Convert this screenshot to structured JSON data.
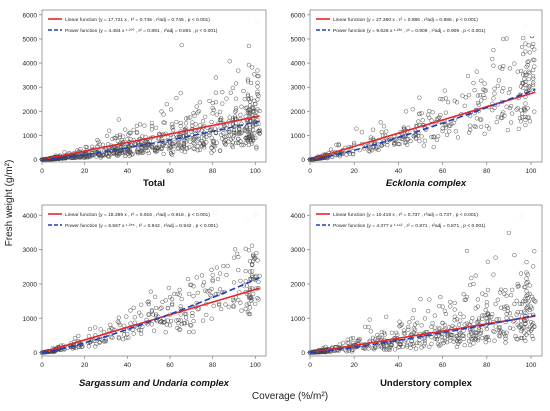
{
  "figure": {
    "ylabel": "Fresh weight (g/m²)",
    "xlabel": "Coverage (%/m²)"
  },
  "colors": {
    "linear": "#e8262a",
    "power": "#1f3fbf",
    "points": "#444444",
    "axis": "#888888"
  },
  "chart_data": [
    {
      "type": "scatter",
      "title": "Total",
      "title_italic": false,
      "ylabel": "Fresh weight (g/m²)",
      "xlabel": "",
      "xlim": [
        0,
        105
      ],
      "ylim": [
        -100,
        6200
      ],
      "xticks": [
        "0",
        "20",
        "40",
        "60",
        "80",
        "100"
      ],
      "yticks": [
        "0",
        "1000",
        "2000",
        "3000",
        "4000",
        "5000",
        "6000"
      ],
      "legend": [
        "Linear function (y = 17.721 x ,  r² = 0.745 ,  r²adj = 0.745 ,  p < 0.001)",
        "Power function (y = 4.484 x ¹·²⁷⁰ ,  r² = 0.891 ,  r²adj = 0.891 ,  p < 0.001)"
      ],
      "legend_position": "top-left",
      "linear": {
        "a": 17.721
      },
      "power": {
        "a": 4.484,
        "b": 1.27
      },
      "n_points": 900,
      "spread": 0.5
    },
    {
      "type": "scatter",
      "title": "Ecklonia complex",
      "title_italic": true,
      "ylabel": "",
      "xlabel": "",
      "xlim": [
        0,
        105
      ],
      "ylim": [
        -100,
        6200
      ],
      "xticks": [
        "0",
        "20",
        "40",
        "60",
        "80",
        "100"
      ],
      "yticks": [
        "0",
        "1000",
        "2000",
        "3000",
        "4000",
        "5000",
        "6000"
      ],
      "legend": [
        "Linear function (y = 27.360 x ,  r² = 0.886 ,  r²adj = 0.886 ,  p < 0.001)",
        "Power function (y = 9.626 x ¹·²³⁵ ,  r² = 0.909 ,  r²adj = 0.909 ,  p < 0.001)"
      ],
      "legend_position": "top-left",
      "linear": {
        "a": 27.36
      },
      "power": {
        "a": 9.626,
        "b": 1.235
      },
      "n_points": 420,
      "spread": 0.35
    },
    {
      "type": "scatter",
      "title": "Sargassum and Undaria complex",
      "title_italic": true,
      "ylabel": "",
      "xlabel": "",
      "xlim": [
        0,
        105
      ],
      "ylim": [
        -100,
        4300
      ],
      "xticks": [
        "0",
        "20",
        "40",
        "60",
        "80",
        "100"
      ],
      "yticks": [
        "0",
        "1000",
        "2000",
        "3000",
        "4000"
      ],
      "legend": [
        "Linear function (y = 18.389 x ,  r² = 0.916 ,  r²adj = 0.916 ,  p < 0.001)",
        "Power function (y = 6.567 x ¹·²⁵⁵ ,  r² = 0.942 ,  r²adj = 0.942 ,  p < 0.001)"
      ],
      "legend_position": "top-left",
      "linear": {
        "a": 18.389
      },
      "power": {
        "a": 6.567,
        "b": 1.255
      },
      "n_points": 380,
      "spread": 0.3
    },
    {
      "type": "scatter",
      "title": "Understory complex",
      "title_italic": false,
      "ylabel": "",
      "xlabel": "",
      "xlim": [
        0,
        105
      ],
      "ylim": [
        -100,
        4300
      ],
      "xticks": [
        "0",
        "20",
        "40",
        "60",
        "80",
        "100"
      ],
      "yticks": [
        "0",
        "1000",
        "2000",
        "3000",
        "4000"
      ],
      "legend": [
        "Linear function (y = 10.419 x ,  r² = 0.737 ,  r²adj = 0.737 ,  p < 0.001)",
        "Power function (y = 4.377 x ¹·¹⁹² ,  r² = 0.871 ,  r²adj = 0.871 ,  p < 0.001)"
      ],
      "legend_position": "top-left",
      "linear": {
        "a": 10.419
      },
      "power": {
        "a": 4.377,
        "b": 1.192
      },
      "n_points": 600,
      "spread": 0.55
    }
  ]
}
